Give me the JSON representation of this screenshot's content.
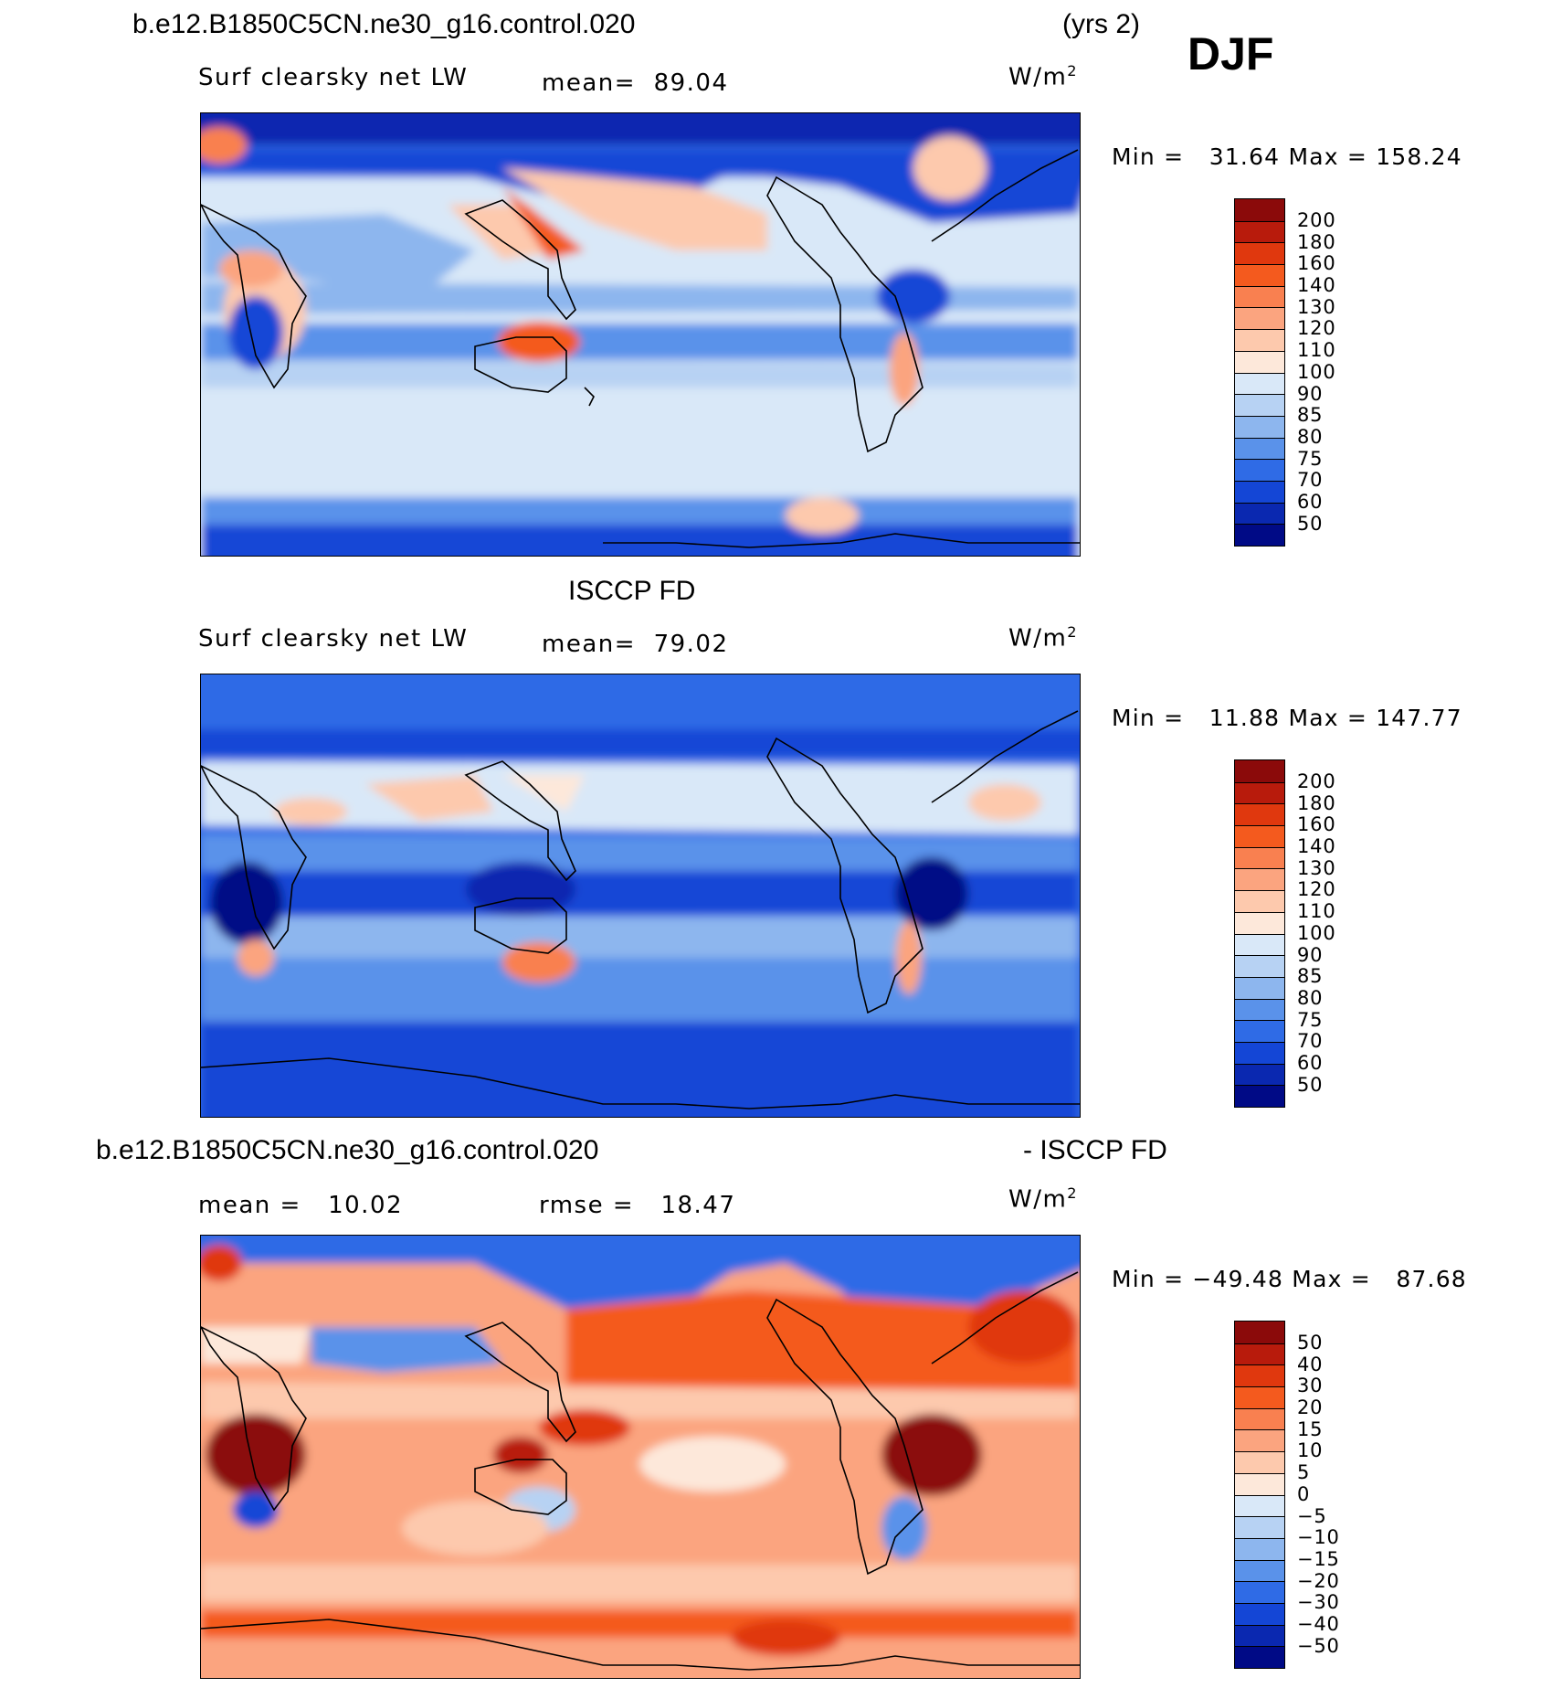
{
  "title": "b.e12.B1850C5CN.ne30_g16.control.020",
  "years": "(yrs 2)",
  "season": "DJF",
  "units_base": "W/m",
  "units_sup": "2",
  "panels": [
    {
      "variable": "Surf clearsky net LW",
      "mean_label": "mean=",
      "mean": "89.04",
      "min_label": "Min =",
      "min": "31.64",
      "max_label": "Max =",
      "max": "158.24",
      "colorbar": [
        "200",
        "180",
        "160",
        "140",
        "130",
        "120",
        "110",
        "100",
        "90",
        "85",
        "80",
        "75",
        "70",
        "60",
        "50"
      ]
    },
    {
      "heading": "ISCCP FD",
      "variable": "Surf clearsky net LW",
      "mean_label": "mean=",
      "mean": "79.02",
      "min_label": "Min =",
      "min": "11.88",
      "max_label": "Max =",
      "max": "147.77",
      "colorbar": [
        "200",
        "180",
        "160",
        "140",
        "130",
        "120",
        "110",
        "100",
        "90",
        "85",
        "80",
        "75",
        "70",
        "60",
        "50"
      ]
    },
    {
      "heading_left": "b.e12.B1850C5CN.ne30_g16.control.020",
      "heading_right": "- ISCCP FD",
      "mean_label": "mean =",
      "mean": "10.02",
      "rmse_label": "rmse =",
      "rmse": "18.47",
      "min_label": "Min =",
      "min": "−49.48",
      "max_label": "Max =",
      "max": "87.68",
      "colorbar": [
        "50",
        "40",
        "30",
        "20",
        "15",
        "10",
        "5",
        "0",
        "−5",
        "−10",
        "−15",
        "−20",
        "−30",
        "−40",
        "−50"
      ]
    }
  ],
  "colors": {
    "scale": [
      "#8b0a0a",
      "#b81b0c",
      "#e0380e",
      "#f45a1e",
      "#f98050",
      "#fba47f",
      "#fdc9ad",
      "#fde8da",
      "#d9e8f8",
      "#b7d2f3",
      "#8db6ee",
      "#5a92ea",
      "#2f6be6",
      "#1446d6",
      "#0a28b0",
      "#000a86"
    ]
  }
}
